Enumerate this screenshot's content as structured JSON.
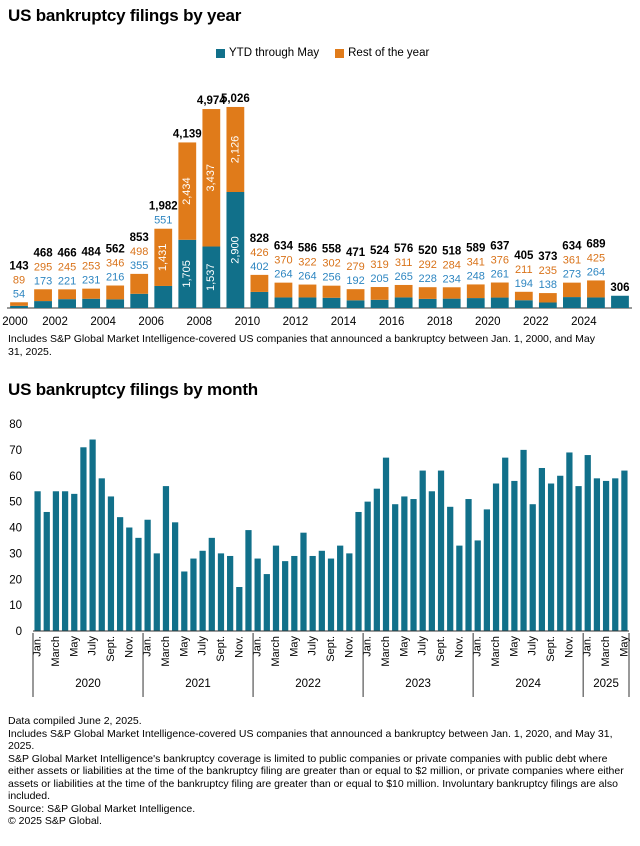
{
  "colors": {
    "ytd": "#11708a",
    "rest": "#e07b1a",
    "ytd_label": "#2e86c1",
    "rest_label": "#d9731a",
    "total_label": "#000000",
    "axis": "#333333"
  },
  "chart_data": [
    {
      "type": "bar",
      "stacked": true,
      "title": "US bankruptcy filings by year",
      "legend_position": "top",
      "legend": [
        "YTD through May",
        "Rest of the year"
      ],
      "categories": [
        "2000",
        "2001",
        "2002",
        "2003",
        "2004",
        "2005",
        "2006",
        "2007",
        "2008",
        "2009",
        "2010",
        "2011",
        "2012",
        "2013",
        "2014",
        "2015",
        "2016",
        "2017",
        "2018",
        "2019",
        "2020",
        "2021",
        "2022",
        "2023",
        "2024",
        "2025"
      ],
      "xtick_labels": [
        "2000",
        "2002",
        "2004",
        "2006",
        "2008",
        "2010",
        "2012",
        "2014",
        "2016",
        "2018",
        "2020",
        "2022",
        "2024"
      ],
      "series": [
        {
          "name": "YTD through May",
          "values": [
            54,
            173,
            221,
            231,
            216,
            355,
            551,
            1705,
            1537,
            2900,
            402,
            264,
            264,
            256,
            192,
            205,
            265,
            228,
            234,
            248,
            261,
            194,
            138,
            273,
            264,
            306
          ]
        },
        {
          "name": "Rest of the year",
          "values": [
            89,
            295,
            245,
            253,
            346,
            498,
            1431,
            2434,
            3437,
            2126,
            426,
            370,
            322,
            302,
            279,
            319,
            311,
            292,
            284,
            341,
            376,
            211,
            235,
            361,
            425,
            null
          ]
        }
      ],
      "totals": [
        143,
        468,
        466,
        484,
        562,
        853,
        1982,
        4139,
        4974,
        5026,
        828,
        634,
        586,
        558,
        471,
        524,
        576,
        520,
        518,
        589,
        637,
        405,
        373,
        634,
        689,
        306
      ],
      "display": {
        "ytd": [
          "54",
          "173",
          "221",
          "231",
          "216",
          "355",
          "551",
          "1,705",
          "1,537",
          "2,900",
          "402",
          "264",
          "264",
          "256",
          "192",
          "205",
          "265",
          "228",
          "234",
          "248",
          "261",
          "194",
          "138",
          "273",
          "264",
          ""
        ],
        "rest": [
          "89",
          "295",
          "245",
          "253",
          "346",
          "498",
          "1,431",
          "2,434",
          "3,437",
          "2,126",
          "426",
          "370",
          "322",
          "302",
          "279",
          "319",
          "311",
          "292",
          "284",
          "341",
          "376",
          "211",
          "235",
          "361",
          "425",
          ""
        ],
        "totals": [
          "143",
          "468",
          "466",
          "484",
          "562",
          "853",
          "1,982",
          "4,139",
          "4,974",
          "5,026",
          "828",
          "634",
          "586",
          "558",
          "471",
          "524",
          "576",
          "520",
          "518",
          "589",
          "637",
          "405",
          "373",
          "634",
          "689",
          "306"
        ]
      },
      "ylim": [
        0,
        5200
      ]
    },
    {
      "type": "bar",
      "title": "US bankruptcy filings by month",
      "ylim": [
        0,
        80
      ],
      "yticks": [
        "0",
        "10",
        "20",
        "30",
        "40",
        "50",
        "60",
        "70",
        "80"
      ],
      "values": [
        54,
        46,
        54,
        54,
        53,
        71,
        74,
        59,
        52,
        44,
        40,
        36,
        43,
        30,
        56,
        42,
        23,
        28,
        31,
        36,
        30,
        29,
        17,
        39,
        28,
        22,
        33,
        27,
        29,
        38,
        29,
        31,
        28,
        33,
        30,
        46,
        50,
        55,
        67,
        49,
        52,
        51,
        62,
        54,
        62,
        48,
        33,
        51,
        35,
        47,
        57,
        67,
        58,
        70,
        49,
        63,
        57,
        60,
        69,
        56,
        68,
        59,
        58,
        59,
        62
      ],
      "month_labels": [
        "Jan.",
        "",
        "March",
        "",
        "May",
        "",
        "July",
        "",
        "Sept.",
        "",
        "Nov.",
        ""
      ],
      "years": [
        "2020",
        "2021",
        "2022",
        "2023",
        "2024",
        "2025"
      ],
      "year2025_labels": [
        "Jan.",
        "",
        "March",
        "",
        "May"
      ]
    }
  ],
  "notes": {
    "year_chart": "Includes S&P Global Market Intelligence-covered US companies that announced a bankruptcy between Jan. 1, 2000, and May 31, 2025.",
    "footer": [
      "Data compiled June 2, 2025.",
      "Includes S&P Global Market Intelligence-covered US companies that announced a bankruptcy between Jan. 1, 2020, and May 31, 2025.",
      "S&P Global Market Intelligence's bankruptcy coverage is limited to public companies or private companies with public debt where either assets or liabilities at the time of the bankruptcy filing are greater than or equal to $2 million, or private companies where either assets or liabilities at the time of the bankruptcy filing are greater than or equal to $10 million. Involuntary bankruptcy filings are also included.",
      "Source: S&P Global Market Intelligence.",
      "© 2025 S&P Global."
    ]
  }
}
